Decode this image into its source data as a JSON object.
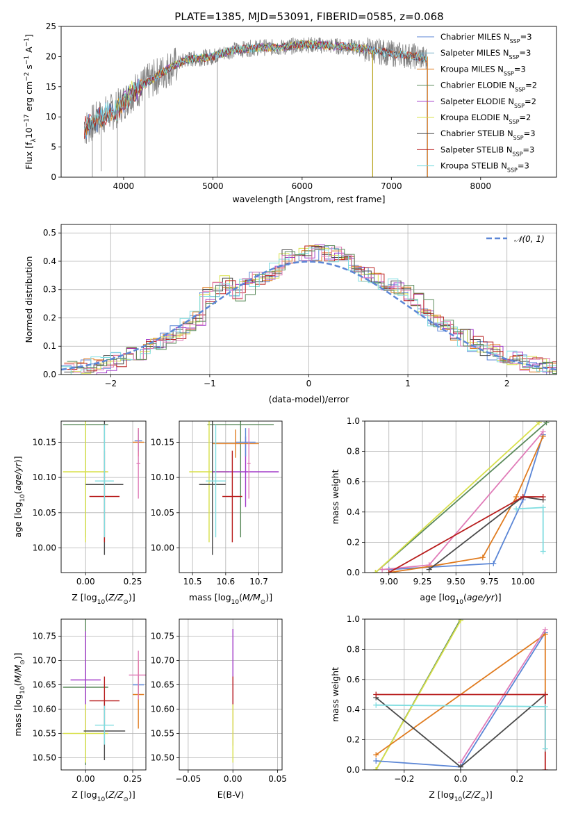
{
  "title": "PLATE=1385, MJD=53091, FIBERID=0585, z=0.068",
  "colors": {
    "Chabrier MILES": "#5b86d6",
    "Salpeter MILES": "#7fb2c9",
    "Kroupa MILES": "#e07b1f",
    "Chabrier ELODIE": "#5a8a5a",
    "Salpeter ELODIE": "#a23bc9",
    "Kroupa ELODIE": "#d8e04a",
    "Chabrier STELIB": "#4a4a4a",
    "Salpeter STELIB": "#b81d1d",
    "Kroupa STELIB": "#7fdde0",
    "data": "#808080",
    "normal": "#5b86d6",
    "pink": "#e07bb8"
  },
  "chart_data": [
    {
      "id": "spectrum",
      "type": "line",
      "xlabel": "wavelength [Angstrom, rest frame]",
      "ylabel": "Flux [f_λ 10^-17 erg cm^-2 s^-1 A^-1]",
      "xlim": [
        3300,
        8850
      ],
      "ylim": [
        0,
        25
      ],
      "xticks": [
        "4000",
        "5000",
        "6000",
        "7000",
        "8000"
      ],
      "yticks": [
        "0",
        "5",
        "10",
        "15",
        "20",
        "25"
      ],
      "legend_position": "right",
      "legend": [
        {
          "name": "Chabrier MILES",
          "sub": "SSP",
          "n": "=3"
        },
        {
          "name": "Salpeter MILES",
          "sub": "SSP",
          "n": "=3"
        },
        {
          "name": "Kroupa MILES",
          "sub": "SSP",
          "n": "=3"
        },
        {
          "name": "Chabrier ELODIE",
          "sub": "SSP",
          "n": "=2"
        },
        {
          "name": "Salpeter ELODIE",
          "sub": "SSP",
          "n": "=2"
        },
        {
          "name": "Kroupa ELODIE",
          "sub": "SSP",
          "n": "=2"
        },
        {
          "name": "Chabrier STELIB",
          "sub": "SSP",
          "n": "=3"
        },
        {
          "name": "Salpeter STELIB",
          "sub": "SSP",
          "n": "=3"
        },
        {
          "name": "Kroupa STELIB",
          "sub": "SSP",
          "n": "=3"
        }
      ],
      "continuum": [
        [
          3560,
          8.0
        ],
        [
          3700,
          9.5
        ],
        [
          3800,
          10.5
        ],
        [
          3900,
          11.0
        ],
        [
          4000,
          12.5
        ],
        [
          4100,
          14.0
        ],
        [
          4300,
          16.0
        ],
        [
          4500,
          18.0
        ],
        [
          4700,
          19.5
        ],
        [
          5000,
          20.0
        ],
        [
          5200,
          21.0
        ],
        [
          5500,
          21.5
        ],
        [
          5800,
          21.5
        ],
        [
          6000,
          22.0
        ],
        [
          6300,
          21.8
        ],
        [
          6600,
          21.5
        ],
        [
          7000,
          20.5
        ],
        [
          7300,
          20.0
        ],
        [
          7400,
          19.5
        ]
      ],
      "dips": [
        [
          3650,
          0
        ],
        [
          3750,
          1
        ],
        [
          3930,
          0
        ],
        [
          4240,
          0
        ],
        [
          5050,
          0
        ],
        [
          6790,
          0
        ],
        [
          7400,
          0
        ]
      ]
    },
    {
      "id": "residuals",
      "type": "histogram",
      "xlabel": "(data-model)/error",
      "ylabel": "Normed distribution",
      "xlim": [
        -2.5,
        2.5
      ],
      "ylim": [
        0,
        0.53
      ],
      "xticks": [
        -2,
        -1,
        0,
        1,
        2
      ],
      "yticks": [
        0.0,
        0.1,
        0.2,
        0.3,
        0.4,
        0.5
      ],
      "grid": true,
      "legend": "𝒩(0, 1)",
      "normal_curve": {
        "mu": 0,
        "sigma": 1
      }
    },
    {
      "id": "age_vs_Z",
      "type": "errorbar",
      "xlabel": "Z [log10(Z/Z⊙)]",
      "ylabel": "age [log10(age/yr)]",
      "xlim": [
        -0.13,
        0.32
      ],
      "ylim": [
        9.965,
        10.18
      ],
      "xticks": [
        0.0,
        0.25
      ],
      "yticks": [
        10.0,
        10.05,
        10.1,
        10.15
      ],
      "grid": true,
      "points": [
        {
          "x": 0.0,
          "y": 10.175,
          "xe": 0.12,
          "ye": 0.16,
          "c": "Chabrier ELODIE"
        },
        {
          "x": 0.0,
          "y": 10.108,
          "xe": 0.12,
          "ye": 0.1,
          "c": "Kroupa ELODIE"
        },
        {
          "x": 0.28,
          "y": 10.15,
          "xe": 0.03,
          "ye": 0.02,
          "c": "Kroupa MILES"
        },
        {
          "x": 0.28,
          "y": 10.152,
          "xe": 0.02,
          "ye": 0.015,
          "c": "Chabrier MILES"
        },
        {
          "x": 0.28,
          "y": 10.12,
          "xe": 0.01,
          "ye": 0.05,
          "c": "pink"
        },
        {
          "x": 0.1,
          "y": 10.09,
          "xe": 0.1,
          "ye": 0.1,
          "c": "Chabrier STELIB"
        },
        {
          "x": 0.1,
          "y": 10.073,
          "xe": 0.08,
          "ye": 0.065,
          "c": "Salpeter STELIB"
        },
        {
          "x": 0.1,
          "y": 10.095,
          "xe": 0.05,
          "ye": 0.08,
          "c": "Kroupa STELIB"
        }
      ]
    },
    {
      "id": "age_vs_mass",
      "type": "errorbar",
      "xlabel": "mass [log10(M/M⊙)]",
      "ylabel": "",
      "xlim": [
        10.46,
        10.77
      ],
      "ylim": [
        9.965,
        10.18
      ],
      "xticks": [
        10.5,
        10.6,
        10.7
      ],
      "yticks": [
        10.0,
        10.05,
        10.1,
        10.15
      ],
      "grid": true,
      "points": [
        {
          "x": 10.645,
          "y": 10.175,
          "xe": 0.1,
          "ye": 0.16,
          "c": "Chabrier ELODIE"
        },
        {
          "x": 10.55,
          "y": 10.108,
          "xe": 0.06,
          "ye": 0.1,
          "c": "Kroupa ELODIE"
        },
        {
          "x": 10.66,
          "y": 10.108,
          "xe": 0.1,
          "ye": 0.05,
          "c": "Salpeter ELODIE"
        },
        {
          "x": 10.66,
          "y": 10.15,
          "xe": 0.03,
          "ye": 0.02,
          "c": "Chabrier MILES"
        },
        {
          "x": 10.63,
          "y": 10.148,
          "xe": 0.07,
          "ye": 0.02,
          "c": "Kroupa MILES"
        },
        {
          "x": 10.56,
          "y": 10.09,
          "xe": 0.04,
          "ye": 0.1,
          "c": "Chabrier STELIB"
        },
        {
          "x": 10.62,
          "y": 10.073,
          "xe": 0.03,
          "ye": 0.065,
          "c": "Salpeter STELIB"
        },
        {
          "x": 10.57,
          "y": 10.095,
          "xe": 0.03,
          "ye": 0.08,
          "c": "Kroupa STELIB"
        },
        {
          "x": 10.67,
          "y": 10.12,
          "xe": 0.005,
          "ye": 0.05,
          "c": "pink"
        }
      ]
    },
    {
      "id": "weight_vs_age",
      "type": "line",
      "xlabel": "age [log10(age/yr)]",
      "ylabel": "mass weight",
      "xlim": [
        8.82,
        10.25
      ],
      "ylim": [
        0,
        1.0
      ],
      "xticks": [
        "9.00",
        "9.25",
        "9.50",
        "9.75",
        "10.00"
      ],
      "yticks": [
        "0.0",
        "0.2",
        "0.4",
        "0.6",
        "0.8",
        "1.0"
      ],
      "grid": true,
      "series": [
        {
          "c": "Chabrier ELODIE",
          "x": [
            8.9,
            10.175
          ],
          "y": [
            0.0,
            0.99
          ]
        },
        {
          "c": "Kroupa ELODIE",
          "x": [
            8.9,
            10.12
          ],
          "y": [
            0.0,
            0.99
          ]
        },
        {
          "c": "Chabrier MILES",
          "x": [
            9.0,
            9.78,
            10.0,
            10.15
          ],
          "y": [
            0.02,
            0.06,
            0.48,
            0.91
          ]
        },
        {
          "c": "Kroupa MILES",
          "x": [
            9.0,
            9.3,
            9.7,
            9.95,
            10.15
          ],
          "y": [
            0.0,
            0.04,
            0.1,
            0.5,
            0.9
          ]
        },
        {
          "c": "pink",
          "x": [
            8.95,
            9.3,
            10.15
          ],
          "y": [
            0.02,
            0.05,
            0.93
          ]
        },
        {
          "c": "Chabrier STELIB",
          "x": [
            9.3,
            10.0,
            10.15
          ],
          "y": [
            0.02,
            0.5,
            0.48
          ]
        },
        {
          "c": "Salpeter STELIB",
          "x": [
            9.0,
            10.0,
            10.15
          ],
          "y": [
            0.0,
            0.5,
            0.5
          ]
        },
        {
          "c": "Kroupa STELIB",
          "x": [
            9.95,
            10.15,
            10.15
          ],
          "y": [
            0.42,
            0.43,
            0.14
          ]
        }
      ]
    },
    {
      "id": "mass_vs_Z",
      "type": "errorbar",
      "xlabel": "Z [log10(Z/Z⊙)]",
      "ylabel": "mass [log10(M/M⊙)]",
      "xlim": [
        -0.13,
        0.32
      ],
      "ylim": [
        10.475,
        10.785
      ],
      "xticks": [
        0.0,
        0.25
      ],
      "yticks": [
        10.5,
        10.55,
        10.6,
        10.65,
        10.7,
        10.75
      ],
      "grid": true,
      "points": [
        {
          "x": 0.0,
          "y": 10.645,
          "xe": 0.12,
          "ye": 0.16,
          "c": "Chabrier ELODIE"
        },
        {
          "x": 0.0,
          "y": 10.66,
          "xe": 0.08,
          "ye": 0.1,
          "c": "Salpeter ELODIE"
        },
        {
          "x": 0.0,
          "y": 10.55,
          "xe": 0.12,
          "ye": 0.06,
          "c": "Kroupa ELODIE"
        },
        {
          "x": 0.1,
          "y": 10.555,
          "xe": 0.11,
          "ye": 0.06,
          "c": "Chabrier STELIB"
        },
        {
          "x": 0.1,
          "y": 10.617,
          "xe": 0.08,
          "ye": 0.05,
          "c": "Salpeter STELIB"
        },
        {
          "x": 0.1,
          "y": 10.567,
          "xe": 0.05,
          "ye": 0.04,
          "c": "Kroupa STELIB"
        },
        {
          "x": 0.28,
          "y": 10.65,
          "xe": 0.03,
          "ye": 0.02,
          "c": "Chabrier MILES"
        },
        {
          "x": 0.28,
          "y": 10.63,
          "xe": 0.03,
          "ye": 0.07,
          "c": "Kroupa MILES"
        },
        {
          "x": 0.28,
          "y": 10.67,
          "xe": 0.05,
          "ye": 0.05,
          "c": "pink"
        }
      ]
    },
    {
      "id": "mass_vs_EBV",
      "type": "errorbar",
      "xlabel": "E(B-V)",
      "ylabel": "",
      "xlim": [
        -0.06,
        0.055
      ],
      "ylim": [
        10.475,
        10.785
      ],
      "xticks": [
        "−0.05",
        "0.00",
        "0.05"
      ],
      "yticks": [
        10.5,
        10.55,
        10.6,
        10.65,
        10.7,
        10.75
      ],
      "grid": true,
      "points": [
        {
          "x": 0.0,
          "y": 10.645,
          "xe": 0.0,
          "ye": 0.12,
          "c": "Salpeter ELODIE"
        },
        {
          "x": 0.0,
          "y": 10.617,
          "xe": 0.0,
          "ye": 0.05,
          "c": "Salpeter STELIB"
        },
        {
          "x": 0.0,
          "y": 10.55,
          "xe": 0.0,
          "ye": 0.06,
          "c": "Kroupa ELODIE"
        }
      ]
    },
    {
      "id": "weight_vs_Z",
      "type": "line",
      "xlabel": "Z [log10(Z/Z⊙)]",
      "ylabel": "mass weight",
      "xlim": [
        -0.34,
        0.34
      ],
      "ylim": [
        0,
        1.0
      ],
      "xticks": [
        "−0.2",
        "0.0",
        "0.2"
      ],
      "yticks": [
        "0.0",
        "0.2",
        "0.4",
        "0.6",
        "0.8",
        "1.0"
      ],
      "grid": true,
      "series": [
        {
          "c": "Chabrier ELODIE",
          "x": [
            -0.3,
            0.0
          ],
          "y": [
            0.0,
            1.0
          ]
        },
        {
          "c": "Kroupa ELODIE",
          "x": [
            -0.3,
            0.0
          ],
          "y": [
            0.0,
            0.99
          ]
        },
        {
          "c": "Chabrier MILES",
          "x": [
            -0.3,
            0.0,
            0.3
          ],
          "y": [
            0.06,
            0.02,
            0.91
          ]
        },
        {
          "c": "Kroupa MILES",
          "x": [
            -0.3,
            0.3,
            0.3
          ],
          "y": [
            0.1,
            0.9,
            0.5
          ]
        },
        {
          "c": "pink",
          "x": [
            0.0,
            0.3
          ],
          "y": [
            0.05,
            0.93
          ]
        },
        {
          "c": "Chabrier STELIB",
          "x": [
            -0.3,
            0.0,
            0.3
          ],
          "y": [
            0.48,
            0.02,
            0.5
          ]
        },
        {
          "c": "Salpeter STELIB",
          "x": [
            -0.3,
            0.3,
            0.3
          ],
          "y": [
            0.5,
            0.5,
            0.0
          ]
        },
        {
          "c": "Kroupa STELIB",
          "x": [
            -0.3,
            0.3,
            0.3
          ],
          "y": [
            0.43,
            0.42,
            0.14
          ]
        }
      ]
    }
  ]
}
